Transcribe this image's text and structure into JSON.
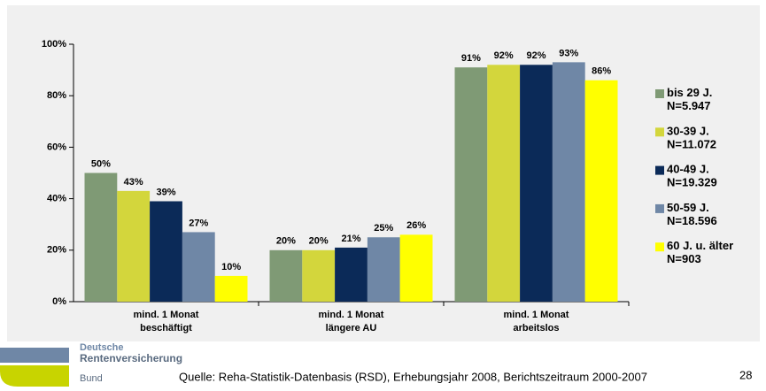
{
  "chart_data": {
    "type": "bar",
    "categories": [
      "mind. 1 Monat\nbeschäftigt",
      "mind. 1 Monat\nlängere AU",
      "mind. 1 Monat\narbeitslos"
    ],
    "series": [
      {
        "name": "bis 29 J.\nN=5.947",
        "color": "#7f9a75",
        "values": [
          50,
          20,
          91
        ],
        "value_labels": [
          "50%",
          "20%",
          "91%"
        ]
      },
      {
        "name": "30-39 J.\nN=11.072",
        "color": "#d3d63c",
        "values": [
          43,
          20,
          92
        ],
        "value_labels": [
          "43%",
          "20%",
          "92%"
        ]
      },
      {
        "name": "40-49 J.\nN=19.329",
        "color": "#0b2a58",
        "values": [
          39,
          21,
          92
        ],
        "value_labels": [
          "39%",
          "21%",
          "92%"
        ]
      },
      {
        "name": "50-59 J.\nN=18.596",
        "color": "#6f87a6",
        "values": [
          27,
          25,
          93
        ],
        "value_labels": [
          "27%",
          "25%",
          "93%"
        ]
      },
      {
        "name": "60 J. u. älter\nN=903",
        "color": "#ffff00",
        "values": [
          10,
          26,
          86
        ],
        "value_labels": [
          "10%",
          "26%",
          "86%"
        ]
      }
    ],
    "ylim": [
      0,
      100
    ],
    "yticks": [
      {
        "value": 0,
        "label": "0%"
      },
      {
        "value": 20,
        "label": "20%"
      },
      {
        "value": 40,
        "label": "40%"
      },
      {
        "value": 60,
        "label": "60%"
      },
      {
        "value": 80,
        "label": "80%"
      },
      {
        "value": 100,
        "label": "100%"
      }
    ],
    "legend": "right"
  },
  "footer": {
    "logo_line1": "Deutsche",
    "logo_line2": "Rentenversicherung",
    "logo_line3": "Bund",
    "source": "Quelle: Reha-Statistik-Datenbasis (RSD), Erhebungsjahr 2008, Berichtszeitraum 2000-2007",
    "page": "28"
  }
}
